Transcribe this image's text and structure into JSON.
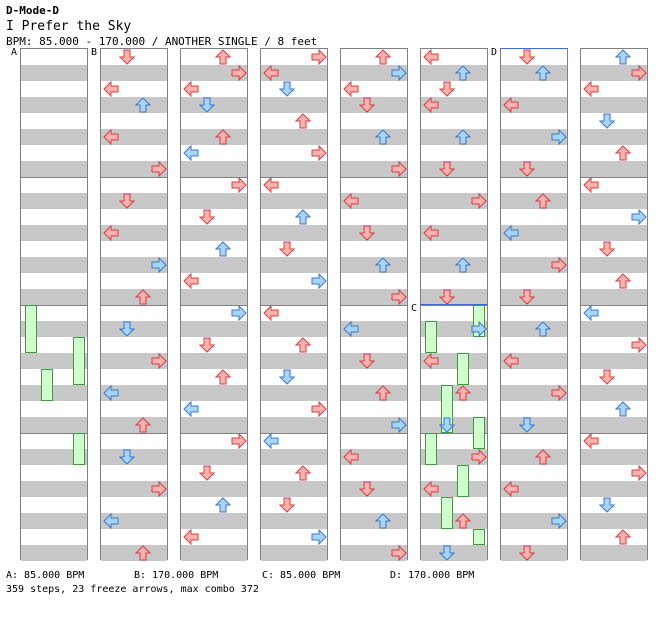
{
  "header": {
    "author": "D-Mode-D",
    "title": "I Prefer the Sky",
    "info": "BPM: 85.000 - 170.000 / ANOTHER SINGLE / 8 feet"
  },
  "markers": {
    "a": "A",
    "b": "B",
    "c": "C",
    "d": "D"
  },
  "footer": {
    "bpm_a": "A: 85.000 BPM",
    "bpm_b": "B: 170.000 BPM",
    "bpm_c": "C: 85.000 BPM",
    "bpm_d": "D: 170.000 BPM",
    "stats": "359 steps, 23 freeze arrows, max combo 372"
  },
  "colors": {
    "red_arrow": "#ffb0b0",
    "red_stroke": "#d04040",
    "blue_arrow": "#a8d4ff",
    "blue_stroke": "#3a78c8",
    "freeze_fill": "#cfffcf",
    "freeze_stroke": "#3f9a3f",
    "stripe": "#c8c8c8"
  },
  "icons": [
    "arrow-left-icon",
    "arrow-down-icon",
    "arrow-up-icon",
    "arrow-right-icon"
  ],
  "chart": {
    "columns": 8,
    "measures_per_column": 4,
    "steps": [
      [],
      [
        [
          0,
          1,
          0
        ],
        [
          2,
          0,
          0
        ],
        [
          3,
          2,
          1
        ],
        [
          5,
          0,
          0
        ],
        [
          7,
          3,
          0
        ],
        [
          9,
          1,
          0
        ],
        [
          11,
          0,
          0
        ],
        [
          13,
          3,
          1
        ],
        [
          15,
          2,
          0
        ],
        [
          17,
          1,
          1
        ],
        [
          19,
          3,
          0
        ],
        [
          21,
          0,
          1
        ],
        [
          23,
          2,
          0
        ],
        [
          25,
          1,
          1
        ],
        [
          27,
          3,
          0
        ],
        [
          29,
          0,
          1
        ],
        [
          31,
          2,
          0
        ]
      ],
      [
        [
          0,
          2,
          0
        ],
        [
          1,
          3,
          0
        ],
        [
          2,
          0,
          0
        ],
        [
          3,
          1,
          1
        ],
        [
          5,
          2,
          0
        ],
        [
          6,
          0,
          1
        ],
        [
          8,
          3,
          0
        ],
        [
          10,
          1,
          0
        ],
        [
          12,
          2,
          1
        ],
        [
          14,
          0,
          0
        ],
        [
          16,
          3,
          1
        ],
        [
          18,
          1,
          0
        ],
        [
          20,
          2,
          0
        ],
        [
          22,
          0,
          1
        ],
        [
          24,
          3,
          0
        ],
        [
          26,
          1,
          0
        ],
        [
          28,
          2,
          1
        ],
        [
          30,
          0,
          0
        ]
      ],
      [
        [
          0,
          3,
          0
        ],
        [
          1,
          0,
          0
        ],
        [
          2,
          1,
          1
        ],
        [
          4,
          2,
          0
        ],
        [
          6,
          3,
          0
        ],
        [
          8,
          0,
          0
        ],
        [
          10,
          2,
          1
        ],
        [
          12,
          1,
          0
        ],
        [
          14,
          3,
          1
        ],
        [
          16,
          0,
          0
        ],
        [
          18,
          2,
          0
        ],
        [
          20,
          1,
          1
        ],
        [
          22,
          3,
          0
        ],
        [
          24,
          0,
          1
        ],
        [
          26,
          2,
          0
        ],
        [
          28,
          1,
          0
        ],
        [
          30,
          3,
          1
        ]
      ],
      [
        [
          0,
          2,
          0
        ],
        [
          1,
          3,
          1
        ],
        [
          2,
          0,
          0
        ],
        [
          3,
          1,
          0
        ],
        [
          5,
          2,
          1
        ],
        [
          7,
          3,
          0
        ],
        [
          9,
          0,
          0
        ],
        [
          11,
          1,
          0
        ],
        [
          13,
          2,
          1
        ],
        [
          15,
          3,
          0
        ],
        [
          17,
          0,
          1
        ],
        [
          19,
          1,
          0
        ],
        [
          21,
          2,
          0
        ],
        [
          23,
          3,
          1
        ],
        [
          25,
          0,
          0
        ],
        [
          27,
          1,
          0
        ],
        [
          29,
          2,
          1
        ],
        [
          31,
          3,
          0
        ]
      ],
      [
        [
          0,
          0,
          0
        ],
        [
          1,
          2,
          1
        ],
        [
          2,
          1,
          0
        ],
        [
          3,
          0,
          0
        ],
        [
          5,
          2,
          1
        ],
        [
          7,
          1,
          0
        ],
        [
          9,
          3,
          0
        ],
        [
          11,
          0,
          0
        ],
        [
          13,
          2,
          1
        ],
        [
          15,
          1,
          0
        ],
        [
          17,
          3,
          1
        ],
        [
          19,
          0,
          0
        ],
        [
          21,
          2,
          0
        ],
        [
          23,
          1,
          1
        ],
        [
          25,
          3,
          0
        ],
        [
          27,
          0,
          0
        ],
        [
          29,
          2,
          0
        ],
        [
          31,
          1,
          1
        ]
      ],
      [
        [
          0,
          1,
          0
        ],
        [
          1,
          2,
          1
        ],
        [
          3,
          0,
          0
        ],
        [
          5,
          3,
          1
        ],
        [
          7,
          1,
          0
        ],
        [
          9,
          2,
          0
        ],
        [
          11,
          0,
          1
        ],
        [
          13,
          3,
          0
        ],
        [
          15,
          1,
          0
        ],
        [
          17,
          2,
          1
        ],
        [
          19,
          0,
          0
        ],
        [
          21,
          3,
          0
        ],
        [
          23,
          1,
          1
        ],
        [
          25,
          2,
          0
        ],
        [
          27,
          0,
          0
        ],
        [
          29,
          3,
          1
        ],
        [
          31,
          1,
          0
        ]
      ],
      [
        [
          0,
          2,
          1
        ],
        [
          1,
          3,
          0
        ],
        [
          2,
          0,
          0
        ],
        [
          4,
          1,
          1
        ],
        [
          6,
          2,
          0
        ],
        [
          8,
          0,
          0
        ],
        [
          10,
          3,
          1
        ],
        [
          12,
          1,
          0
        ],
        [
          14,
          2,
          0
        ],
        [
          16,
          0,
          1
        ],
        [
          18,
          3,
          0
        ],
        [
          20,
          1,
          0
        ],
        [
          22,
          2,
          1
        ],
        [
          24,
          0,
          0
        ],
        [
          26,
          3,
          0
        ],
        [
          28,
          1,
          1
        ],
        [
          30,
          2,
          0
        ]
      ]
    ],
    "freezes": [
      [
        [
          16,
          0,
          3
        ],
        [
          18,
          3,
          3
        ],
        [
          20,
          1,
          2
        ],
        [
          24,
          3,
          2
        ]
      ],
      [],
      [],
      [],
      [],
      [
        [
          17,
          0,
          2
        ],
        [
          16,
          3,
          2
        ],
        [
          19,
          2,
          2
        ],
        [
          21,
          1,
          3
        ],
        [
          23,
          3,
          2
        ],
        [
          24,
          0,
          2
        ],
        [
          26,
          2,
          2
        ],
        [
          28,
          1,
          2
        ],
        [
          30,
          3,
          1
        ]
      ],
      [],
      []
    ]
  }
}
